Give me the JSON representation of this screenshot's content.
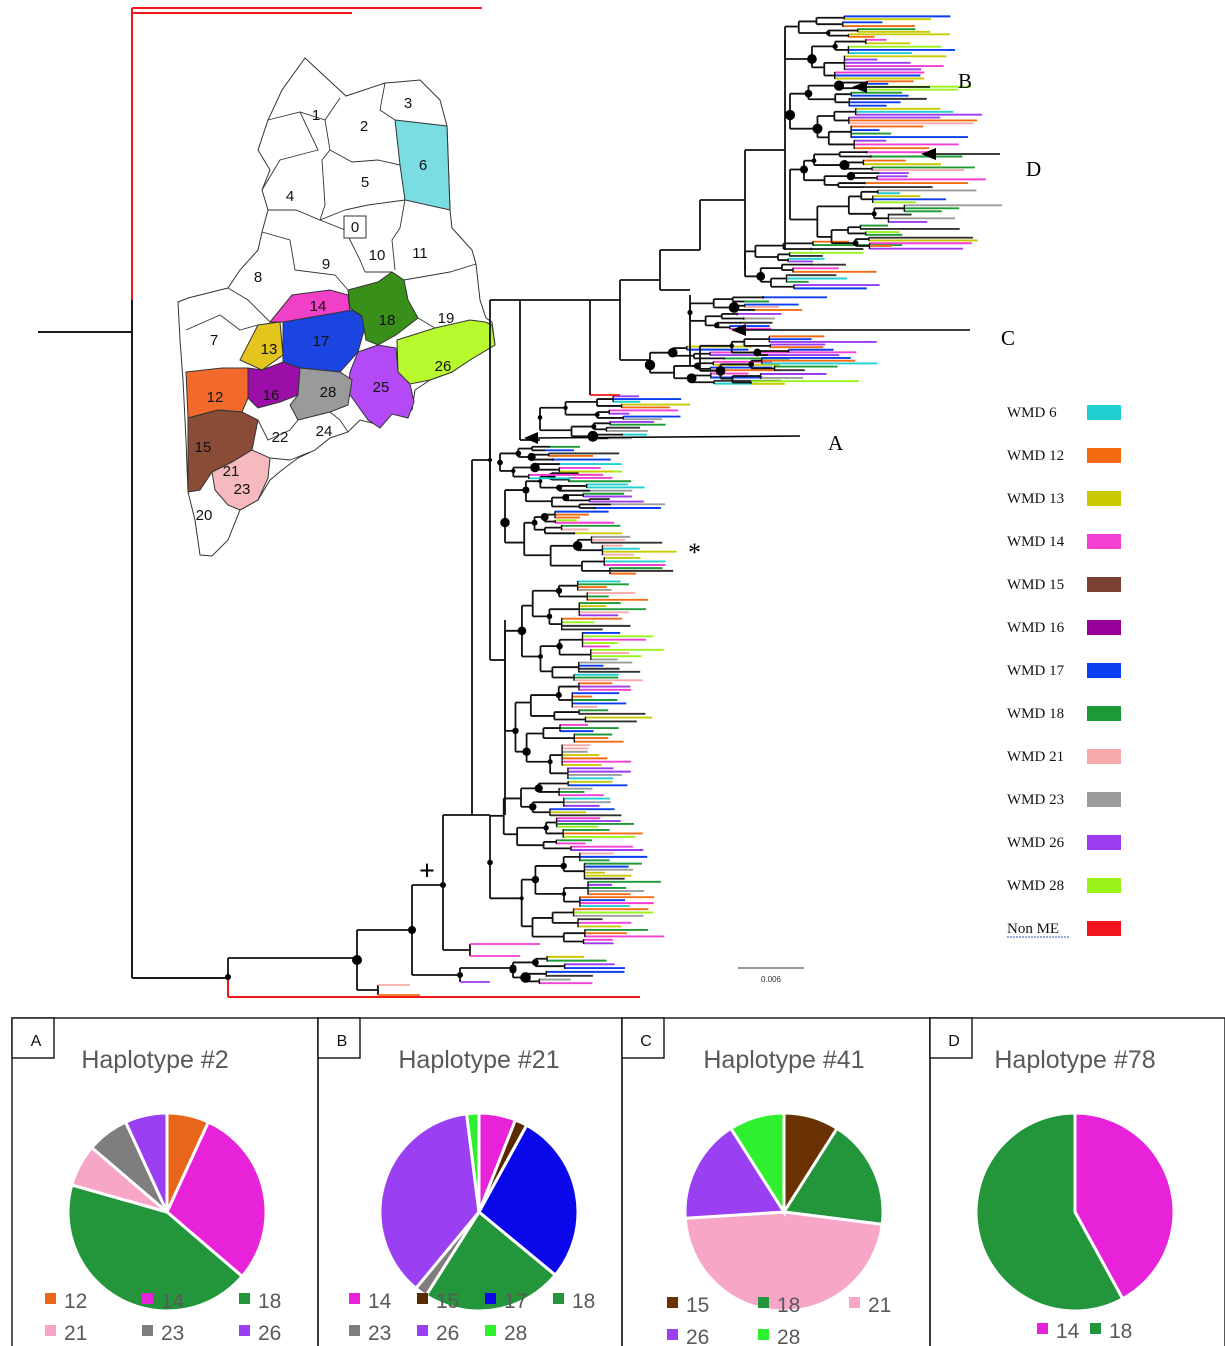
{
  "map": {
    "districts": [
      {
        "id": "1"
      },
      {
        "id": "2"
      },
      {
        "id": "3"
      },
      {
        "id": "4"
      },
      {
        "id": "5"
      },
      {
        "id": "6",
        "color": "#79DDE3"
      },
      {
        "id": "0"
      },
      {
        "id": "7"
      },
      {
        "id": "8"
      },
      {
        "id": "9"
      },
      {
        "id": "10"
      },
      {
        "id": "11"
      },
      {
        "id": "12",
        "color": "#F26A2C"
      },
      {
        "id": "13",
        "color": "#E3C51E"
      },
      {
        "id": "14",
        "color": "#F040C8"
      },
      {
        "id": "15",
        "color": "#8A4B37"
      },
      {
        "id": "16",
        "color": "#9B0FA8"
      },
      {
        "id": "17",
        "color": "#1A45E0"
      },
      {
        "id": "18",
        "color": "#38901A"
      },
      {
        "id": "19"
      },
      {
        "id": "20"
      },
      {
        "id": "21",
        "color": "#F6B9BE"
      },
      {
        "id": "22"
      },
      {
        "id": "23",
        "color": "#9A9A9A"
      },
      {
        "id": "24"
      },
      {
        "id": "25"
      },
      {
        "id": "26",
        "color": "#B44AF5"
      },
      {
        "id": "28",
        "color": "#B9FA2E"
      }
    ]
  },
  "tree": {
    "clade_labels": [
      "A",
      "B",
      "C",
      "D"
    ],
    "star_label": "*",
    "plus_label": "+",
    "scale_label": "0.006"
  },
  "legend": [
    {
      "label": "WMD 6",
      "color": "#22CFD0"
    },
    {
      "label": "WMD 12",
      "color": "#F36C12"
    },
    {
      "label": "WMD 13",
      "color": "#C9C900"
    },
    {
      "label": "WMD 14",
      "color": "#F43FD2"
    },
    {
      "label": "WMD 15",
      "color": "#7A4133"
    },
    {
      "label": "WMD 16",
      "color": "#98009A"
    },
    {
      "label": "WMD 17",
      "color": "#0A3EF0"
    },
    {
      "label": "WMD 18",
      "color": "#1C9A35"
    },
    {
      "label": "WMD 21",
      "color": "#F8AAAA"
    },
    {
      "label": "WMD 23",
      "color": "#9C9C9C"
    },
    {
      "label": "WMD 26",
      "color": "#9C3BF0"
    },
    {
      "label": "WMD 28",
      "color": "#99F21A"
    },
    {
      "label": "Non ME",
      "color": "#F2141E"
    }
  ],
  "chart_data": [
    {
      "type": "pie",
      "panel": "A",
      "title": "Haplotype #2",
      "categories": [
        "12",
        "14",
        "18",
        "21",
        "23",
        "26"
      ],
      "values": [
        7,
        30,
        44,
        7,
        7,
        7
      ],
      "colors": [
        "#E8661A",
        "#E822D8",
        "#23963C",
        "#F7A6C8",
        "#7E7E7E",
        "#9B3FF2"
      ]
    },
    {
      "type": "pie",
      "panel": "B",
      "title": "Haplotype #21",
      "categories": [
        "14",
        "15",
        "17",
        "18",
        "23",
        "26",
        "28"
      ],
      "values": [
        6,
        2,
        28,
        23,
        2,
        37,
        2
      ],
      "colors": [
        "#E822D8",
        "#5A2A00",
        "#0A08E8",
        "#23963C",
        "#7E7E7E",
        "#9B3FF2",
        "#2EF02E"
      ]
    },
    {
      "type": "pie",
      "panel": "C",
      "title": "Haplotype #41",
      "categories": [
        "15",
        "18",
        "21",
        "26",
        "28"
      ],
      "values": [
        9,
        18,
        47,
        17,
        9
      ],
      "colors": [
        "#6A3200",
        "#23963C",
        "#F7A6C8",
        "#9B3FF2",
        "#2EF02E"
      ]
    },
    {
      "type": "pie",
      "panel": "D",
      "title": "Haplotype #78",
      "categories": [
        "14",
        "18"
      ],
      "values": [
        42,
        58
      ],
      "colors": [
        "#E822D8",
        "#23963C"
      ]
    }
  ]
}
